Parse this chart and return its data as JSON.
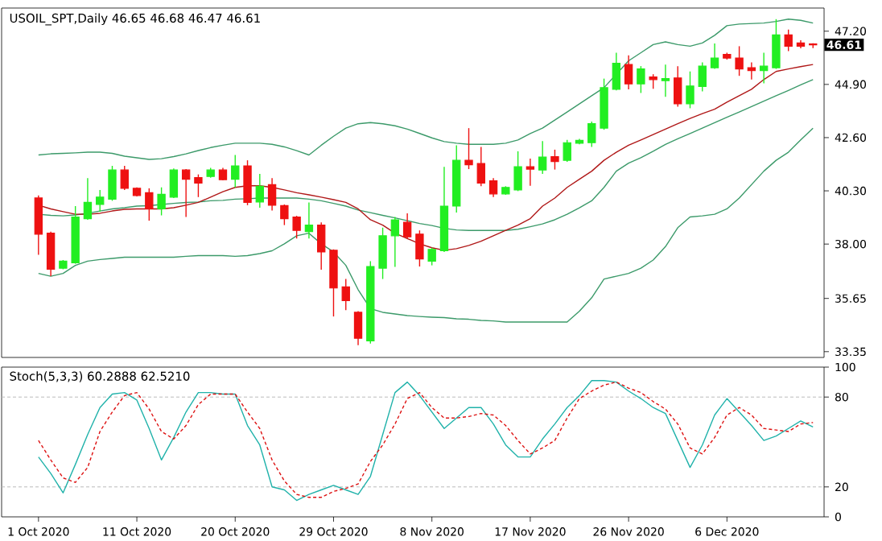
{
  "chart_data": [
    {
      "type": "candlestick",
      "title": "USOIL_SPT,Daily 46.65 46.68 46.47 46.61",
      "ohlc": [
        [
          39.99,
          40.1,
          37.54,
          38.43
        ],
        [
          38.47,
          38.54,
          36.61,
          36.91
        ],
        [
          36.96,
          37.31,
          36.91,
          37.26
        ],
        [
          37.19,
          39.64,
          37.15,
          39.17
        ],
        [
          39.1,
          40.85,
          39.05,
          39.8
        ],
        [
          39.71,
          40.34,
          39.4,
          40.03
        ],
        [
          39.94,
          41.38,
          39.87,
          41.2
        ],
        [
          41.2,
          41.38,
          40.34,
          40.41
        ],
        [
          40.41,
          40.45,
          40.06,
          40.1
        ],
        [
          40.22,
          40.41,
          39.01,
          39.52
        ],
        [
          39.52,
          40.45,
          39.24,
          40.15
        ],
        [
          40.03,
          41.27,
          39.99,
          41.2
        ],
        [
          41.2,
          41.24,
          39.17,
          40.8
        ],
        [
          40.87,
          41.01,
          40.03,
          40.64
        ],
        [
          40.92,
          41.29,
          40.87,
          41.2
        ],
        [
          41.2,
          41.29,
          40.75,
          40.78
        ],
        [
          40.8,
          41.85,
          40.45,
          41.38
        ],
        [
          41.38,
          41.62,
          39.68,
          39.8
        ],
        [
          39.82,
          41.03,
          39.57,
          40.5
        ],
        [
          40.57,
          40.85,
          39.45,
          39.68
        ],
        [
          39.66,
          39.71,
          38.82,
          39.1
        ],
        [
          39.17,
          39.22,
          38.24,
          38.59
        ],
        [
          38.54,
          39.8,
          38.24,
          38.82
        ],
        [
          38.82,
          38.94,
          36.89,
          37.66
        ],
        [
          37.73,
          37.77,
          34.87,
          36.1
        ],
        [
          36.15,
          36.49,
          35.14,
          35.56
        ],
        [
          35.05,
          35.1,
          33.63,
          33.93
        ],
        [
          33.82,
          37.26,
          33.7,
          37.03
        ],
        [
          36.96,
          38.71,
          36.49,
          38.36
        ],
        [
          38.36,
          39.17,
          37.01,
          39.05
        ],
        [
          38.94,
          39.33,
          38.24,
          38.31
        ],
        [
          38.43,
          38.59,
          37.03,
          37.36
        ],
        [
          37.26,
          37.84,
          37.08,
          37.77
        ],
        [
          37.71,
          41.34,
          37.66,
          39.64
        ],
        [
          39.64,
          42.27,
          39.36,
          41.62
        ],
        [
          41.62,
          43.01,
          41.24,
          41.43
        ],
        [
          41.48,
          42.2,
          40.5,
          40.64
        ],
        [
          40.73,
          40.85,
          40.03,
          40.17
        ],
        [
          40.17,
          40.5,
          40.13,
          40.45
        ],
        [
          40.34,
          42.01,
          40.29,
          41.34
        ],
        [
          41.34,
          41.69,
          40.52,
          41.24
        ],
        [
          41.2,
          42.45,
          41.03,
          41.76
        ],
        [
          41.78,
          42.08,
          41.22,
          41.57
        ],
        [
          41.62,
          42.5,
          41.55,
          42.38
        ],
        [
          42.36,
          42.55,
          42.31,
          42.48
        ],
        [
          42.38,
          43.29,
          42.2,
          43.2
        ],
        [
          43.01,
          45.15,
          42.94,
          44.76
        ],
        [
          44.69,
          46.27,
          44.64,
          45.81
        ],
        [
          45.76,
          46.16,
          44.69,
          44.92
        ],
        [
          44.92,
          45.69,
          44.53,
          45.57
        ],
        [
          45.22,
          45.34,
          44.71,
          45.11
        ],
        [
          45.06,
          45.76,
          44.36,
          45.15
        ],
        [
          45.18,
          45.69,
          43.94,
          44.06
        ],
        [
          44.06,
          45.46,
          43.87,
          44.83
        ],
        [
          44.81,
          45.85,
          44.6,
          45.69
        ],
        [
          45.62,
          46.67,
          45.57,
          46.04
        ],
        [
          46.2,
          46.27,
          45.97,
          46.04
        ],
        [
          46.04,
          46.55,
          45.27,
          45.57
        ],
        [
          45.62,
          45.85,
          45.11,
          45.5
        ],
        [
          45.5,
          46.27,
          44.95,
          45.69
        ],
        [
          45.62,
          47.72,
          45.57,
          47.04
        ],
        [
          47.04,
          47.27,
          46.34,
          46.55
        ],
        [
          46.69,
          46.81,
          46.46,
          46.55
        ],
        [
          46.65,
          46.68,
          46.47,
          46.61
        ]
      ],
      "colors": [
        "#ee1111",
        "#ee1111",
        "#22ee22",
        "#22ee22",
        "#22ee22",
        "#22ee22",
        "#22ee22",
        "#ee1111",
        "#ee1111",
        "#ee1111",
        "#22ee22",
        "#22ee22",
        "#ee1111",
        "#ee1111",
        "#22ee22",
        "#ee1111",
        "#22ee22",
        "#ee1111",
        "#22ee22",
        "#ee1111",
        "#ee1111",
        "#ee1111",
        "#22ee22",
        "#ee1111",
        "#ee1111",
        "#ee1111",
        "#ee1111",
        "#22ee22",
        "#22ee22",
        "#22ee22",
        "#ee1111",
        "#ee1111",
        "#22ee22",
        "#22ee22",
        "#22ee22",
        "#ee1111",
        "#ee1111",
        "#ee1111",
        "#22ee22",
        "#22ee22",
        "#ee1111",
        "#22ee22",
        "#ee1111",
        "#22ee22",
        "#22ee22",
        "#22ee22",
        "#22ee22",
        "#22ee22",
        "#ee1111",
        "#22ee22",
        "#ee1111",
        "#22ee22",
        "#ee1111",
        "#22ee22",
        "#22ee22",
        "#22ee22",
        "#ee1111",
        "#ee1111",
        "#ee1111",
        "#22ee22",
        "#22ee22",
        "#ee1111",
        "#ee1111",
        "#ee1111"
      ],
      "series": [
        {
          "type": "line",
          "color": "#3c9a6a",
          "values": [
            41.85,
            41.9,
            41.92,
            41.94,
            41.97,
            41.97,
            41.92,
            41.8,
            41.73,
            41.66,
            41.69,
            41.78,
            41.9,
            42.04,
            42.17,
            42.27,
            42.36,
            42.36,
            42.36,
            42.31,
            42.2,
            42.04,
            41.85,
            42.27,
            42.66,
            43.01,
            43.2,
            43.25,
            43.2,
            43.11,
            42.97,
            42.78,
            42.59,
            42.43,
            42.36,
            42.31,
            42.31,
            42.31,
            42.36,
            42.5,
            42.78,
            43.01,
            43.36,
            43.71,
            44.06,
            44.41,
            44.76,
            45.34,
            45.92,
            46.27,
            46.62,
            46.74,
            46.62,
            46.55,
            46.69,
            47.02,
            47.44,
            47.51,
            47.53,
            47.55,
            47.62,
            47.72,
            47.67,
            47.55
          ]
        },
        {
          "type": "line",
          "color": "#3c9a6a",
          "values": [
            39.29,
            39.24,
            39.22,
            39.26,
            39.33,
            39.43,
            39.52,
            39.57,
            39.64,
            39.66,
            39.71,
            39.76,
            39.8,
            39.82,
            39.87,
            39.89,
            39.94,
            39.96,
            39.99,
            39.99,
            39.99,
            39.99,
            39.94,
            39.87,
            39.76,
            39.64,
            39.47,
            39.36,
            39.24,
            39.13,
            39.01,
            38.89,
            38.8,
            38.68,
            38.61,
            38.59,
            38.59,
            38.59,
            38.59,
            38.64,
            38.75,
            38.87,
            39.05,
            39.29,
            39.57,
            39.87,
            40.45,
            41.15,
            41.5,
            41.73,
            42.01,
            42.31,
            42.55,
            42.78,
            43.01,
            43.25,
            43.48,
            43.71,
            43.94,
            44.18,
            44.41,
            44.64,
            44.88,
            45.11
          ]
        },
        {
          "type": "line",
          "color": "#3c9a6a",
          "values": [
            36.73,
            36.61,
            36.73,
            37.08,
            37.26,
            37.33,
            37.38,
            37.43,
            37.43,
            37.43,
            37.43,
            37.43,
            37.47,
            37.5,
            37.5,
            37.5,
            37.47,
            37.5,
            37.59,
            37.71,
            38.01,
            38.36,
            38.47,
            38.01,
            37.66,
            37.08,
            36.03,
            35.21,
            35.05,
            34.98,
            34.91,
            34.87,
            34.84,
            34.82,
            34.77,
            34.75,
            34.7,
            34.68,
            34.63,
            34.63,
            34.63,
            34.63,
            34.63,
            34.63,
            35.1,
            35.68,
            36.49,
            36.61,
            36.73,
            36.96,
            37.31,
            37.89,
            38.71,
            39.17,
            39.22,
            39.29,
            39.52,
            39.99,
            40.57,
            41.15,
            41.62,
            41.97,
            42.5,
            43.01
          ]
        },
        {
          "type": "line",
          "color": "#b01818",
          "values": [
            39.68,
            39.52,
            39.4,
            39.29,
            39.29,
            39.33,
            39.43,
            39.5,
            39.52,
            39.52,
            39.52,
            39.57,
            39.68,
            39.8,
            40.03,
            40.26,
            40.45,
            40.52,
            40.52,
            40.45,
            40.34,
            40.22,
            40.13,
            40.03,
            39.92,
            39.8,
            39.52,
            39.05,
            38.82,
            38.47,
            38.24,
            38.01,
            37.84,
            37.73,
            37.8,
            37.94,
            38.12,
            38.36,
            38.59,
            38.82,
            39.1,
            39.64,
            39.99,
            40.45,
            40.8,
            41.15,
            41.62,
            41.97,
            42.27,
            42.5,
            42.73,
            42.97,
            43.2,
            43.43,
            43.64,
            43.83,
            44.13,
            44.41,
            44.69,
            45.11,
            45.46,
            45.57,
            45.67,
            45.76
          ]
        }
      ],
      "ylim": [
        33.1,
        48.2
      ],
      "yticks": [
        {
          "value": 33.35,
          "label": "33.35"
        },
        {
          "value": 35.65,
          "label": "35.65"
        },
        {
          "value": 38.0,
          "label": "38.00"
        },
        {
          "value": 40.3,
          "label": "40.30"
        },
        {
          "value": 42.6,
          "label": "42.60"
        },
        {
          "value": 44.9,
          "label": "44.90"
        },
        {
          "value": 47.2,
          "label": "47.20"
        }
      ],
      "tick_labels": "y",
      "annotations": [
        "46.61"
      ]
    },
    {
      "type": "line",
      "title": "Stoch(5,3,3) 60.2888 62.5210",
      "categories": [
        "1 Oct 2020",
        null,
        null,
        null,
        null,
        null,
        null,
        null,
        "11 Oct 2020",
        null,
        null,
        null,
        null,
        null,
        null,
        null,
        "20 Oct 2020",
        null,
        null,
        null,
        null,
        null,
        null,
        null,
        "29 Oct 2020",
        null,
        null,
        null,
        null,
        null,
        null,
        null,
        "8 Nov 2020",
        null,
        null,
        null,
        null,
        null,
        null,
        null,
        "17 Nov 2020",
        null,
        null,
        null,
        null,
        null,
        null,
        null,
        "26 Nov 2020",
        null,
        null,
        null,
        null,
        null,
        null,
        null,
        "6 Dec 2020",
        null,
        null,
        null,
        null,
        null,
        null,
        null
      ],
      "series": [
        {
          "color": "#20b2aa",
          "values": [
            40,
            29,
            16,
            35,
            55,
            73,
            82,
            83,
            78,
            59,
            38,
            53,
            70,
            83,
            83,
            82,
            82,
            61,
            48,
            20,
            18,
            11,
            15,
            18,
            21,
            18,
            15,
            27,
            55,
            83,
            90,
            81,
            70,
            59,
            66,
            73,
            73,
            62,
            48,
            40,
            40,
            52,
            62,
            73,
            81,
            91,
            91,
            90,
            84,
            79,
            73,
            69,
            51,
            33,
            48,
            68,
            79,
            70,
            61,
            51,
            54,
            59,
            64,
            60
          ]
        },
        {
          "color": "#dd1111",
          "line_style": "dashed",
          "values": [
            51,
            38,
            26,
            23,
            33,
            57,
            70,
            81,
            83,
            72,
            57,
            52,
            61,
            75,
            82,
            82,
            82,
            70,
            59,
            38,
            24,
            15,
            13,
            13,
            17,
            19,
            22,
            37,
            48,
            62,
            79,
            83,
            73,
            66,
            66,
            67,
            69,
            68,
            61,
            51,
            42,
            46,
            51,
            66,
            79,
            84,
            88,
            90,
            86,
            83,
            77,
            72,
            62,
            46,
            42,
            53,
            68,
            73,
            68,
            59,
            58,
            57,
            62,
            63
          ]
        }
      ],
      "ylim": [
        0,
        100
      ],
      "yticks": [
        0,
        20,
        80,
        100
      ],
      "ref_lines": [
        {
          "axis": "y",
          "value": 20,
          "color": "#bbbbbb",
          "line_style": "dashed"
        },
        {
          "axis": "y",
          "value": 80,
          "color": "#bbbbbb",
          "line_style": "dashed"
        }
      ]
    }
  ]
}
